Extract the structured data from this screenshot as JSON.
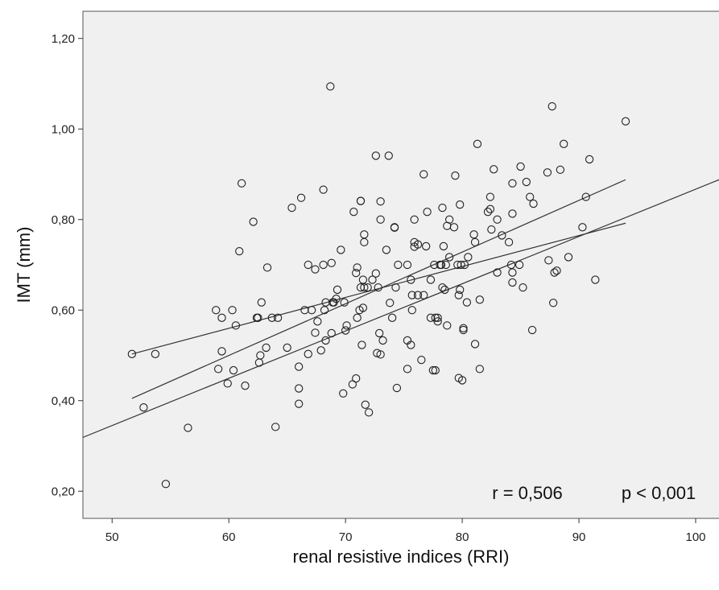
{
  "chart_data": {
    "type": "scatter",
    "title": "",
    "xlabel": "renal resistive indices (RRI)",
    "ylabel": "IMT (mm)",
    "xlim": [
      47.5,
      102.0
    ],
    "ylim": [
      0.14,
      1.26
    ],
    "x_ticks": [
      50,
      60,
      70,
      80,
      90,
      100
    ],
    "x_tick_labels": [
      "50",
      "60",
      "70",
      "80",
      "90",
      "100"
    ],
    "y_ticks": [
      0.2,
      0.4,
      0.6,
      0.8,
      1.0,
      1.2
    ],
    "y_tick_labels": [
      "0,20",
      "0,40",
      "0,60",
      "0,80",
      "1,00",
      "1,20"
    ],
    "grid": false,
    "annotations": {
      "r_text": "r = 0,506",
      "p_text": "p < 0,001"
    },
    "regression": {
      "intercept": -0.177,
      "slope": 0.01044,
      "x_range": [
        47.5,
        102.0
      ]
    },
    "confidence_band": {
      "upper": [
        [
          51.7,
          0.503
        ],
        [
          94.0,
          0.792
        ]
      ],
      "lower": [
        [
          51.7,
          0.405
        ],
        [
          94.0,
          0.888
        ]
      ]
    },
    "colors": {
      "plot_background": "#f0f0f0",
      "marker_stroke": "#222222",
      "line": "#333333"
    },
    "points": [
      [
        51.7,
        0.503
      ],
      [
        52.7,
        0.385
      ],
      [
        53.7,
        0.503
      ],
      [
        54.6,
        0.216
      ],
      [
        56.5,
        0.34
      ],
      [
        58.9,
        0.6
      ],
      [
        59.1,
        0.47
      ],
      [
        59.4,
        0.509
      ],
      [
        59.4,
        0.583
      ],
      [
        59.9,
        0.438
      ],
      [
        60.3,
        0.6
      ],
      [
        60.4,
        0.467
      ],
      [
        60.6,
        0.566
      ],
      [
        60.9,
        0.73
      ],
      [
        61.1,
        0.88
      ],
      [
        61.4,
        0.433
      ],
      [
        62.1,
        0.795
      ],
      [
        62.4,
        0.583
      ],
      [
        62.5,
        0.583
      ],
      [
        62.6,
        0.484
      ],
      [
        62.7,
        0.5
      ],
      [
        62.8,
        0.617
      ],
      [
        63.2,
        0.517
      ],
      [
        63.3,
        0.694
      ],
      [
        63.7,
        0.583
      ],
      [
        64.0,
        0.342
      ],
      [
        64.2,
        0.583
      ],
      [
        65.0,
        0.517
      ],
      [
        65.4,
        0.826
      ],
      [
        66.0,
        0.475
      ],
      [
        66.0,
        0.427
      ],
      [
        66.0,
        0.393
      ],
      [
        66.2,
        0.848
      ],
      [
        66.5,
        0.6
      ],
      [
        66.8,
        0.503
      ],
      [
        66.8,
        0.7
      ],
      [
        67.1,
        0.6
      ],
      [
        67.4,
        0.55
      ],
      [
        67.4,
        0.69
      ],
      [
        67.6,
        0.575
      ],
      [
        67.9,
        0.511
      ],
      [
        68.1,
        0.7
      ],
      [
        68.1,
        0.866
      ],
      [
        68.2,
        0.6
      ],
      [
        68.3,
        0.533
      ],
      [
        68.3,
        0.617
      ],
      [
        68.7,
        1.094
      ],
      [
        68.8,
        0.549
      ],
      [
        68.8,
        0.704
      ],
      [
        68.9,
        0.617
      ],
      [
        69.0,
        0.617
      ],
      [
        69.2,
        0.625
      ],
      [
        69.3,
        0.645
      ],
      [
        69.6,
        0.733
      ],
      [
        69.8,
        0.416
      ],
      [
        69.9,
        0.617
      ],
      [
        70.0,
        0.555
      ],
      [
        70.1,
        0.566
      ],
      [
        70.6,
        0.436
      ],
      [
        70.7,
        0.817
      ],
      [
        70.9,
        0.449
      ],
      [
        70.9,
        0.682
      ],
      [
        71.0,
        0.583
      ],
      [
        71.0,
        0.694
      ],
      [
        71.2,
        0.6
      ],
      [
        71.3,
        0.65
      ],
      [
        71.3,
        0.841
      ],
      [
        71.3,
        0.841
      ],
      [
        71.4,
        0.523
      ],
      [
        71.5,
        0.667
      ],
      [
        71.5,
        0.605
      ],
      [
        71.6,
        0.65
      ],
      [
        71.6,
        0.75
      ],
      [
        71.6,
        0.767
      ],
      [
        71.7,
        0.391
      ],
      [
        71.9,
        0.65
      ],
      [
        72.0,
        0.374
      ],
      [
        72.3,
        0.667
      ],
      [
        72.6,
        0.941
      ],
      [
        72.6,
        0.681
      ],
      [
        72.7,
        0.505
      ],
      [
        72.8,
        0.65
      ],
      [
        72.9,
        0.549
      ],
      [
        73.0,
        0.84
      ],
      [
        73.0,
        0.8
      ],
      [
        73.0,
        0.502
      ],
      [
        73.2,
        0.533
      ],
      [
        73.5,
        0.733
      ],
      [
        73.7,
        0.941
      ],
      [
        73.8,
        0.616
      ],
      [
        74.0,
        0.583
      ],
      [
        74.2,
        0.783
      ],
      [
        74.2,
        0.782
      ],
      [
        74.3,
        0.65
      ],
      [
        74.4,
        0.428
      ],
      [
        74.5,
        0.7
      ],
      [
        75.3,
        0.533
      ],
      [
        75.3,
        0.47
      ],
      [
        75.3,
        0.7
      ],
      [
        75.6,
        0.667
      ],
      [
        75.6,
        0.523
      ],
      [
        75.7,
        0.633
      ],
      [
        75.7,
        0.6
      ],
      [
        75.9,
        0.8
      ],
      [
        75.9,
        0.75
      ],
      [
        75.9,
        0.74
      ],
      [
        76.2,
        0.633
      ],
      [
        76.2,
        0.745
      ],
      [
        76.5,
        0.49
      ],
      [
        76.7,
        0.633
      ],
      [
        76.7,
        0.9
      ],
      [
        76.9,
        0.741
      ],
      [
        77.0,
        0.817
      ],
      [
        77.3,
        0.583
      ],
      [
        77.3,
        0.667
      ],
      [
        77.5,
        0.467
      ],
      [
        77.6,
        0.7
      ],
      [
        77.7,
        0.583
      ],
      [
        77.7,
        0.467
      ],
      [
        77.9,
        0.575
      ],
      [
        77.9,
        0.583
      ],
      [
        78.1,
        0.7
      ],
      [
        78.2,
        0.7
      ],
      [
        78.3,
        0.65
      ],
      [
        78.3,
        0.826
      ],
      [
        78.4,
        0.741
      ],
      [
        78.5,
        0.645
      ],
      [
        78.6,
        0.7
      ],
      [
        78.7,
        0.786
      ],
      [
        78.7,
        0.566
      ],
      [
        78.9,
        0.8
      ],
      [
        78.9,
        0.717
      ],
      [
        79.3,
        0.783
      ],
      [
        79.4,
        0.897
      ],
      [
        79.6,
        0.7
      ],
      [
        79.7,
        0.45
      ],
      [
        79.7,
        0.633
      ],
      [
        79.8,
        0.833
      ],
      [
        79.8,
        0.645
      ],
      [
        79.9,
        0.7
      ],
      [
        80.0,
        0.445
      ],
      [
        80.1,
        0.556
      ],
      [
        80.1,
        0.56
      ],
      [
        80.2,
        0.7
      ],
      [
        80.4,
        0.617
      ],
      [
        80.5,
        0.717
      ],
      [
        81.0,
        0.767
      ],
      [
        81.1,
        0.525
      ],
      [
        81.1,
        0.75
      ],
      [
        81.3,
        0.967
      ],
      [
        81.5,
        0.47
      ],
      [
        81.5,
        0.623
      ],
      [
        82.2,
        0.817
      ],
      [
        82.4,
        0.85
      ],
      [
        82.4,
        0.823
      ],
      [
        82.5,
        0.778
      ],
      [
        82.7,
        0.911
      ],
      [
        83.0,
        0.8
      ],
      [
        83.0,
        0.683
      ],
      [
        83.4,
        0.765
      ],
      [
        84.0,
        0.75
      ],
      [
        84.2,
        0.7
      ],
      [
        84.3,
        0.683
      ],
      [
        84.3,
        0.88
      ],
      [
        84.3,
        0.813
      ],
      [
        84.3,
        0.661
      ],
      [
        84.9,
        0.7
      ],
      [
        85.0,
        0.917
      ],
      [
        85.2,
        0.65
      ],
      [
        85.5,
        0.883
      ],
      [
        85.8,
        0.85
      ],
      [
        86.0,
        0.556
      ],
      [
        86.1,
        0.835
      ],
      [
        87.3,
        0.904
      ],
      [
        87.4,
        0.71
      ],
      [
        87.7,
        1.05
      ],
      [
        87.8,
        0.616
      ],
      [
        87.9,
        0.683
      ],
      [
        88.1,
        0.687
      ],
      [
        88.4,
        0.91
      ],
      [
        88.7,
        0.967
      ],
      [
        89.1,
        0.717
      ],
      [
        90.3,
        0.783
      ],
      [
        90.6,
        0.85
      ],
      [
        90.9,
        0.933
      ],
      [
        91.4,
        0.667
      ],
      [
        94.0,
        1.017
      ]
    ]
  }
}
